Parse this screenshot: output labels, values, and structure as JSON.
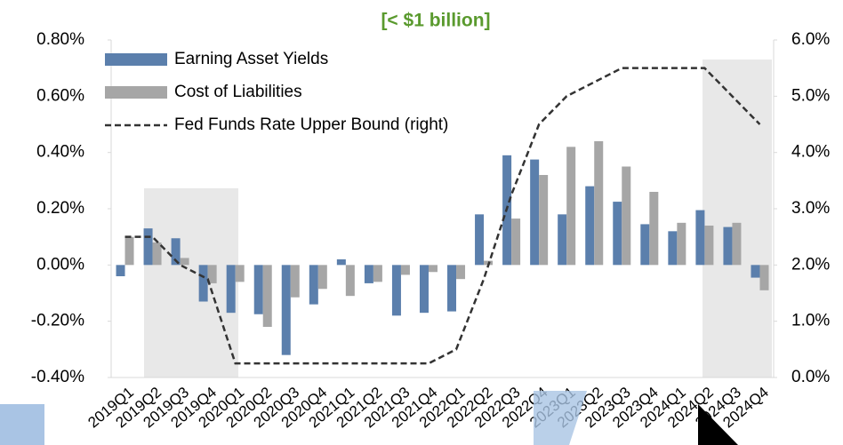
{
  "chart_data": {
    "type": "bar",
    "title": "[< $1 billion]",
    "categories": [
      "2019Q1",
      "2019Q2",
      "2019Q3",
      "2019Q4",
      "2020Q1",
      "2020Q2",
      "2020Q3",
      "2020Q4",
      "2021Q1",
      "2021Q2",
      "2021Q3",
      "2021Q4",
      "2022Q1",
      "2022Q2",
      "2022Q3",
      "2022Q4",
      "2023Q1",
      "2023Q2",
      "2023Q3",
      "2023Q4",
      "2024Q1",
      "2024Q2",
      "2024Q3",
      "2024Q4"
    ],
    "series": [
      {
        "name": "Earning Asset Yields",
        "color": "#5b7fac",
        "values": [
          -0.04,
          0.13,
          0.095,
          -0.13,
          -0.17,
          -0.175,
          -0.32,
          -0.14,
          0.02,
          -0.065,
          -0.18,
          -0.17,
          -0.165,
          0.18,
          0.39,
          0.375,
          0.18,
          0.28,
          0.225,
          0.145,
          0.12,
          0.195,
          0.135,
          -0.045
        ]
      },
      {
        "name": "Cost of Liabilities",
        "color": "#a6a6a6",
        "values": [
          0.1,
          0.08,
          0.025,
          -0.065,
          -0.06,
          -0.22,
          -0.115,
          -0.085,
          -0.11,
          -0.06,
          -0.035,
          -0.025,
          -0.05,
          0.015,
          0.165,
          0.32,
          0.42,
          0.44,
          0.35,
          0.26,
          0.15,
          0.14,
          0.15,
          -0.09
        ]
      },
      {
        "name": "Fed Funds Rate Upper Bound (right)",
        "color": "#333333",
        "axis": "y2",
        "values": [
          2.5,
          2.5,
          2.0,
          1.75,
          0.25,
          0.25,
          0.25,
          0.25,
          0.25,
          0.25,
          0.25,
          0.25,
          0.5,
          1.75,
          3.25,
          4.5,
          5.0,
          5.25,
          5.5,
          5.5,
          5.5,
          5.5,
          5.0,
          4.5
        ]
      }
    ],
    "ylim": [
      -0.4,
      0.8
    ],
    "yticks": [
      {
        "value": -0.4,
        "label": "-0.40%"
      },
      {
        "value": -0.2,
        "label": "-0.20%"
      },
      {
        "value": 0,
        "label": "0.00%"
      },
      {
        "value": 0.2,
        "label": "0.20%"
      },
      {
        "value": 0.4,
        "label": "0.40%"
      },
      {
        "value": 0.6,
        "label": "0.60%"
      },
      {
        "value": 0.8,
        "label": "0.80%"
      }
    ],
    "y2lim": [
      0,
      6
    ],
    "y2ticks": [
      {
        "value": 0,
        "label": "0.0%"
      },
      {
        "value": 1,
        "label": "1.0%"
      },
      {
        "value": 2,
        "label": "2.0%"
      },
      {
        "value": 3,
        "label": "3.0%"
      },
      {
        "value": 4,
        "label": "4.0%"
      },
      {
        "value": 5,
        "label": "5.0%"
      },
      {
        "value": 6,
        "label": "6.0%"
      }
    ],
    "legend": "upper left"
  }
}
